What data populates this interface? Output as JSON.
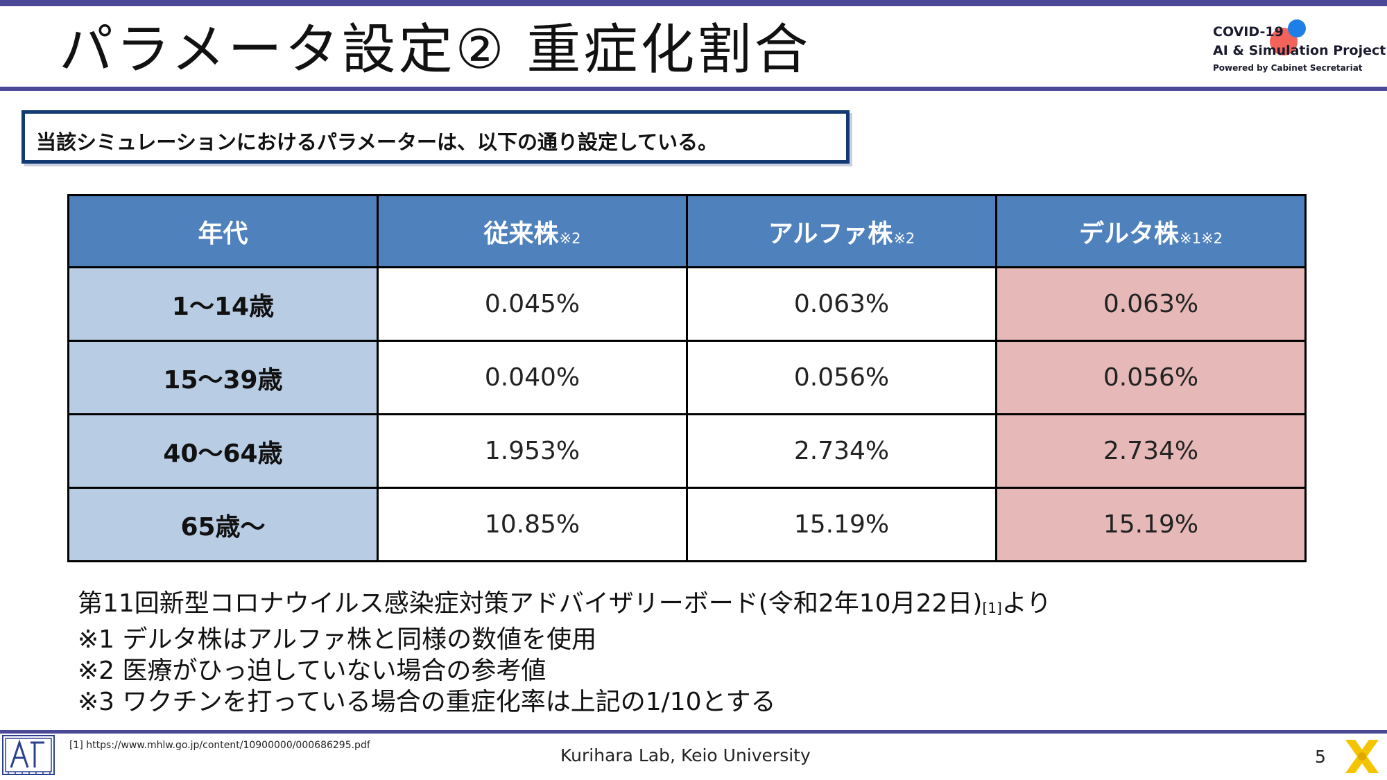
{
  "slide": {
    "title": "パラメータ設定② 重症化割合",
    "callout": "当該シミュレーションにおけるパラメーターは、以下の通り設定している。",
    "logo": {
      "line1": "COVID-19",
      "line2": "AI & Simulation Project",
      "line3": "Powered by Cabinet Secretariat"
    },
    "colors": {
      "accent": "#4b4897",
      "header": "#4f81bd",
      "age_col": "#b8cce4",
      "delta_col": "#e6b8b8",
      "callout_border": "#123a72"
    }
  },
  "table": {
    "headers": [
      {
        "label": "年代",
        "note": ""
      },
      {
        "label": "従来株",
        "note": "※2"
      },
      {
        "label": "アルファ株",
        "note": "※2"
      },
      {
        "label": "デルタ株",
        "note": "※1※2"
      }
    ],
    "rows": [
      {
        "age": "1～14歳",
        "conventional": "0.045%",
        "alpha": "0.063%",
        "delta": "0.063%"
      },
      {
        "age": "15～39歳",
        "conventional": "0.040%",
        "alpha": "0.056%",
        "delta": "0.056%"
      },
      {
        "age": "40～64歳",
        "conventional": "1.953%",
        "alpha": "2.734%",
        "delta": "2.734%"
      },
      {
        "age": "65歳～",
        "conventional": "10.85%",
        "alpha": "15.19%",
        "delta": "15.19%"
      }
    ]
  },
  "notes": {
    "source_main": "第11回新型コロナウイルス感染症対策アドバイザリーボード(令和2年10月22日)",
    "source_ref": "[1]",
    "source_tail": "より",
    "note1": "※1 デルタ株はアルファ株と同様の数値を使用",
    "note2": "※2 医療がひっ迫していない場合の参考値",
    "note3": "※3 ワクチンを打っている場合の重症化率は上記の1/10とする"
  },
  "footer": {
    "footnote": "[1] https://www.mhlw.go.jp/content/10900000/000686295.pdf",
    "center": "Kurihara Lab, Keio University",
    "page": "5"
  }
}
